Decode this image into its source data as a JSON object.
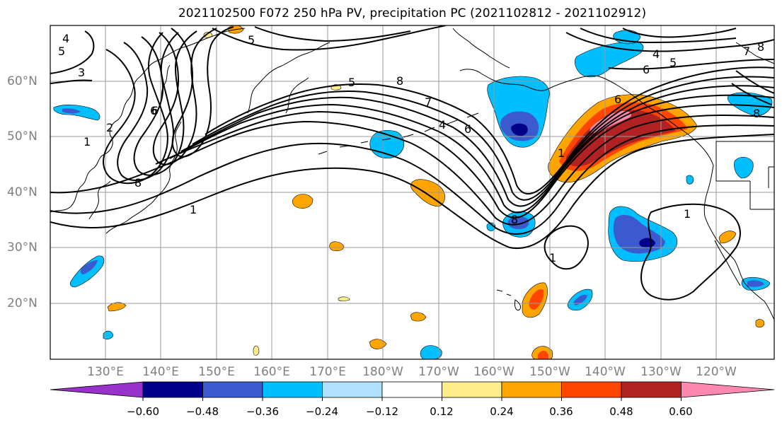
{
  "title": "2021102500 F072 250 hPa PV, precipitation PC (2021102812 - 2021102912)",
  "lat_labels": [
    "60°N",
    "50°N",
    "40°N",
    "30°N",
    "20°N"
  ],
  "lon_labels": [
    "130°E",
    "140°E",
    "150°E",
    "160°E",
    "170°E",
    "180°W",
    "170°W",
    "160°W",
    "150°W",
    "140°W",
    "130°W",
    "120°W"
  ],
  "colorbar": {
    "tick_labels": [
      "−0.60",
      "−0.48",
      "−0.36",
      "−0.24",
      "−0.12",
      "0.12",
      "0.24",
      "0.36",
      "0.48",
      "0.60"
    ],
    "colors": [
      "#9932cc",
      "#00008b",
      "#3a5acd",
      "#00bfff",
      "#b0e2ff",
      "#ffffff",
      "#ffec8b",
      "#ffa500",
      "#ff4500",
      "#b22222",
      "#ff88b0"
    ]
  },
  "contour_labels": [
    "4",
    "3",
    "5",
    "2",
    "1",
    "8",
    "6",
    "5",
    "8",
    "7",
    "6",
    "4",
    "5",
    "7",
    "8",
    "6",
    "4",
    "5",
    "6",
    "1",
    "1",
    "1",
    "1",
    "6",
    "8",
    "8"
  ],
  "map_colors": {
    "contour": "#000000",
    "grid": "#9a9a9a",
    "coast": "#000000"
  }
}
